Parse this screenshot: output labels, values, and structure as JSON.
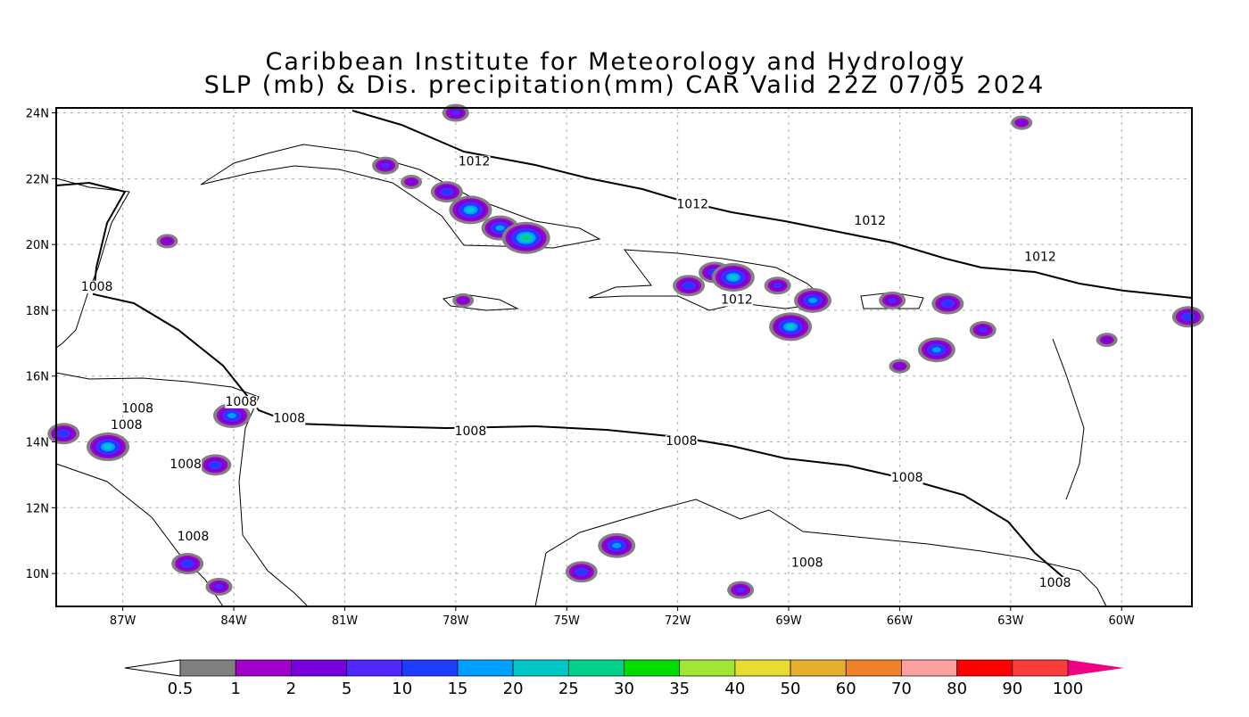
{
  "title": {
    "line1": "Caribbean Institute for Meteorology and Hydrology",
    "line2": "SLP (mb) & Dis. precipitation(mm) CAR Valid 22Z 07/05 2024"
  },
  "map": {
    "lon_range": [
      -88.8,
      -58.1
    ],
    "lat_range": [
      9.0,
      24.15
    ],
    "lat_ticks": [
      {
        "v": 24,
        "label": "24N"
      },
      {
        "v": 22,
        "label": "22N"
      },
      {
        "v": 20,
        "label": "20N"
      },
      {
        "v": 18,
        "label": "18N"
      },
      {
        "v": 16,
        "label": "16N"
      },
      {
        "v": 14,
        "label": "14N"
      },
      {
        "v": 12,
        "label": "12N"
      },
      {
        "v": 10,
        "label": "10N"
      }
    ],
    "lon_ticks": [
      {
        "v": -87,
        "label": "87W"
      },
      {
        "v": -84,
        "label": "84W"
      },
      {
        "v": -81,
        "label": "81W"
      },
      {
        "v": -78,
        "label": "78W"
      },
      {
        "v": -75,
        "label": "75W"
      },
      {
        "v": -72,
        "label": "72W"
      },
      {
        "v": -69,
        "label": "69W"
      },
      {
        "v": -66,
        "label": "66W"
      },
      {
        "v": -63,
        "label": "63W"
      },
      {
        "v": -60,
        "label": "60W"
      }
    ],
    "contour_labels": [
      {
        "text": "1012",
        "lon": -77.5,
        "lat": 22.4
      },
      {
        "text": "1012",
        "lon": -71.6,
        "lat": 21.1
      },
      {
        "text": "1012",
        "lon": -66.8,
        "lat": 20.6
      },
      {
        "text": "1012",
        "lon": -62.2,
        "lat": 19.5
      },
      {
        "text": "1012",
        "lon": -70.4,
        "lat": 18.2
      },
      {
        "text": "1008",
        "lon": -87.7,
        "lat": 18.6
      },
      {
        "text": "1008",
        "lon": -83.8,
        "lat": 15.1
      },
      {
        "text": "1008",
        "lon": -86.6,
        "lat": 14.9
      },
      {
        "text": "1008",
        "lon": -86.9,
        "lat": 14.4
      },
      {
        "text": "1008",
        "lon": -82.5,
        "lat": 14.6
      },
      {
        "text": "1008",
        "lon": -85.3,
        "lat": 13.2
      },
      {
        "text": "1008",
        "lon": -77.6,
        "lat": 14.2
      },
      {
        "text": "1008",
        "lon": -71.9,
        "lat": 13.9
      },
      {
        "text": "1008",
        "lon": -65.8,
        "lat": 12.8
      },
      {
        "text": "1008",
        "lon": -85.1,
        "lat": 11.0
      },
      {
        "text": "1008",
        "lon": -68.5,
        "lat": 10.2
      },
      {
        "text": "1008",
        "lon": -61.8,
        "lat": 9.6
      }
    ],
    "precip_cells": [
      {
        "lon": -79.9,
        "lat": 22.4,
        "mm": 5
      },
      {
        "lon": -79.2,
        "lat": 21.9,
        "mm": 2
      },
      {
        "lon": -78.24,
        "lat": 21.6,
        "mm": 10
      },
      {
        "lon": -77.6,
        "lat": 21.05,
        "mm": 20
      },
      {
        "lon": -76.8,
        "lat": 20.5,
        "mm": 15
      },
      {
        "lon": -76.1,
        "lat": 20.2,
        "mm": 25
      },
      {
        "lon": -77.8,
        "lat": 18.3,
        "mm": 2
      },
      {
        "lon": -71.7,
        "lat": 18.75,
        "mm": 10
      },
      {
        "lon": -71.0,
        "lat": 19.15,
        "mm": 10
      },
      {
        "lon": -70.5,
        "lat": 19.0,
        "mm": 20
      },
      {
        "lon": -69.3,
        "lat": 18.75,
        "mm": 5
      },
      {
        "lon": -68.35,
        "lat": 18.3,
        "mm": 15
      },
      {
        "lon": -68.95,
        "lat": 17.5,
        "mm": 20
      },
      {
        "lon": -66.2,
        "lat": 18.3,
        "mm": 5
      },
      {
        "lon": -64.7,
        "lat": 18.2,
        "mm": 10
      },
      {
        "lon": -65.0,
        "lat": 16.8,
        "mm": 15
      },
      {
        "lon": -63.75,
        "lat": 17.4,
        "mm": 5
      },
      {
        "lon": -58.2,
        "lat": 17.8,
        "mm": 10
      },
      {
        "lon": -60.4,
        "lat": 17.1,
        "mm": 2
      },
      {
        "lon": -66.0,
        "lat": 16.3,
        "mm": 2
      },
      {
        "lon": -88.6,
        "lat": 14.25,
        "mm": 10
      },
      {
        "lon": -87.4,
        "lat": 13.85,
        "mm": 20
      },
      {
        "lon": -84.05,
        "lat": 14.8,
        "mm": 15
      },
      {
        "lon": -84.5,
        "lat": 13.3,
        "mm": 10
      },
      {
        "lon": -84.4,
        "lat": 9.6,
        "mm": 5
      },
      {
        "lon": -85.25,
        "lat": 10.3,
        "mm": 10
      },
      {
        "lon": -73.65,
        "lat": 10.85,
        "mm": 15
      },
      {
        "lon": -74.6,
        "lat": 10.05,
        "mm": 10
      },
      {
        "lon": -70.3,
        "lat": 9.5,
        "mm": 5
      },
      {
        "lon": -85.8,
        "lat": 20.1,
        "mm": 2
      },
      {
        "lon": -62.7,
        "lat": 23.7,
        "mm": 2
      },
      {
        "lon": -78.0,
        "lat": 24.0,
        "mm": 5
      }
    ]
  },
  "colorbar": {
    "labels": [
      "0.5",
      "1",
      "2",
      "5",
      "10",
      "15",
      "20",
      "25",
      "30",
      "35",
      "40",
      "50",
      "60",
      "70",
      "80",
      "90",
      "100"
    ],
    "thresholds": [
      0.5,
      1,
      2,
      5,
      10,
      15,
      20,
      25,
      30,
      35,
      40,
      50,
      60,
      70,
      80,
      90,
      100
    ],
    "colors": [
      "#808080",
      "#a000c8",
      "#7800dc",
      "#5028ff",
      "#1e3cff",
      "#00a0ff",
      "#00c8c8",
      "#00d28c",
      "#00dc00",
      "#a0e632",
      "#e6dc32",
      "#e6af2d",
      "#f08228",
      "#ffa0a0",
      "#ff0000",
      "#fa3c3c"
    ],
    "under_color": "#ffffff",
    "over_color": "#f00082"
  }
}
